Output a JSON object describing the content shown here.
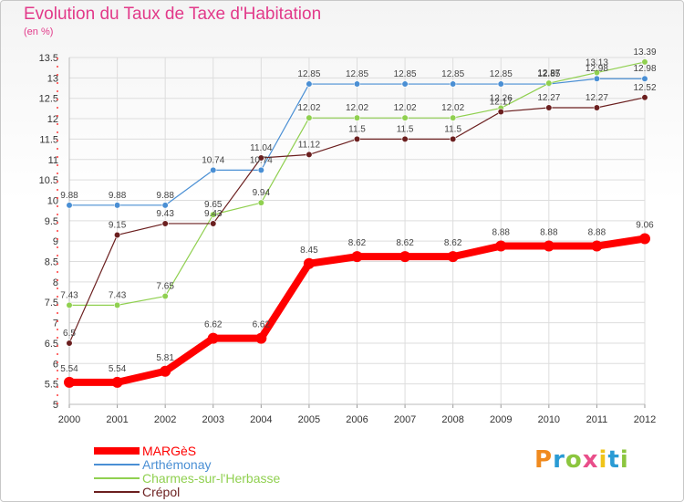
{
  "chart_data": {
    "type": "line",
    "title": "Evolution du Taux de Taxe d'Habitation",
    "subtitle": "(en %)",
    "x": [
      "2000",
      "2001",
      "2002",
      "2003",
      "2004",
      "2005",
      "2006",
      "2007",
      "2008",
      "2009",
      "2010",
      "2011",
      "2012"
    ],
    "ylim": [
      5,
      13.5
    ],
    "yticks": [
      "5",
      "5.5",
      "6",
      "6.5",
      "7",
      "7.5",
      "8",
      "8.5",
      "9",
      "9.5",
      "10",
      "10.5",
      "11",
      "11.5",
      "12",
      "12.5",
      "13",
      "13.5"
    ],
    "grid": true,
    "legend_position": "bottom-left",
    "series": [
      {
        "name": "MARGèS",
        "color": "#ff0000",
        "width": 8,
        "values": [
          5.54,
          5.54,
          5.81,
          6.62,
          6.62,
          8.45,
          8.62,
          8.62,
          8.62,
          8.88,
          8.88,
          8.88,
          9.06
        ],
        "labels": [
          "5.54",
          "5.54",
          "5.81",
          "6.62",
          "6.62",
          "8.45",
          "8.62",
          "8.62",
          "8.62",
          "8.88",
          "8.88",
          "8.88",
          "9.06"
        ]
      },
      {
        "name": "Arthémonay",
        "color": "#4a8fd4",
        "width": 1.2,
        "values": [
          9.88,
          9.88,
          9.88,
          10.74,
          10.74,
          12.85,
          12.85,
          12.85,
          12.85,
          12.85,
          12.85,
          12.98,
          12.98
        ],
        "labels": [
          "9.88",
          "9.88",
          "9.88",
          "10.74",
          "10.74",
          "12.85",
          "12.85",
          "12.85",
          "12.85",
          "12.85",
          "12.85",
          "12.98",
          "12.98"
        ]
      },
      {
        "name": "Charmes-sur-l'Herbasse",
        "color": "#90d050",
        "width": 1.2,
        "values": [
          7.43,
          7.43,
          7.65,
          9.65,
          9.94,
          12.02,
          12.02,
          12.02,
          12.02,
          12.26,
          12.87,
          13.13,
          13.39
        ],
        "labels": [
          "7.43",
          "7.43",
          "7.65",
          "9.65",
          "9.94",
          "12.02",
          "12.02",
          "12.02",
          "12.02",
          "12.26",
          "12.87",
          "13.13",
          "13.39"
        ]
      },
      {
        "name": "Crépol",
        "color": "#6b1f1f",
        "width": 1.2,
        "values": [
          6.5,
          9.15,
          9.43,
          9.43,
          11.04,
          11.12,
          11.5,
          11.5,
          11.5,
          12.17,
          12.27,
          12.27,
          12.52
        ],
        "labels": [
          "6.5",
          "9.15",
          "9.43",
          "9.43",
          "11.04",
          "11.12",
          "11.5",
          "11.5",
          "11.5",
          "12.17",
          "12.27",
          "12.27",
          "12.52"
        ]
      }
    ]
  },
  "logo": {
    "text": "Proxiti"
  }
}
